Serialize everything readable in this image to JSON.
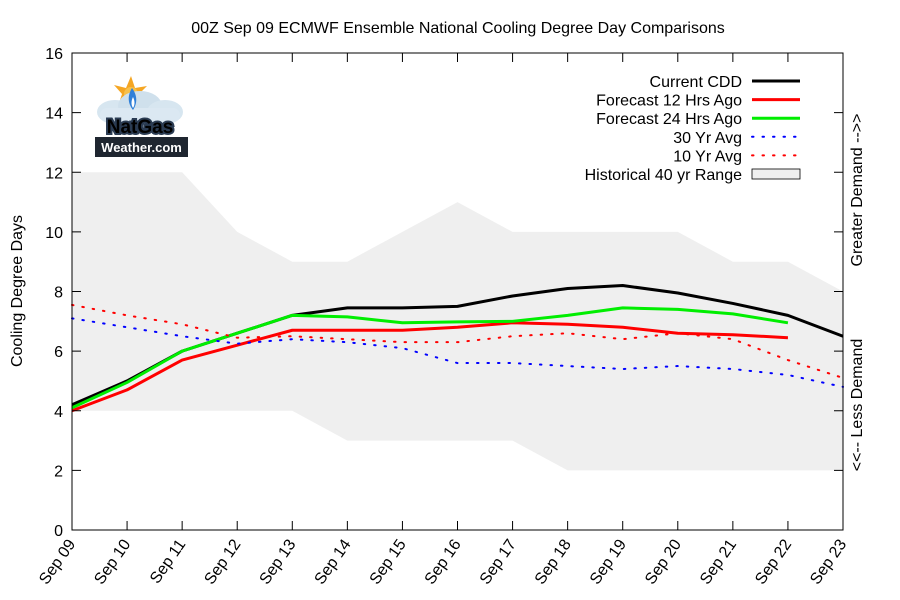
{
  "chart_data": {
    "type": "line",
    "title": "00Z Sep 09 ECMWF Ensemble National Cooling Degree Day Comparisons",
    "ylabel": "Cooling Degree Days",
    "right_label_top": "Greater Demand -->>",
    "right_label_bottom": "<<-- Less Demand",
    "ylim": [
      0,
      16
    ],
    "yticks": [
      0,
      2,
      4,
      6,
      8,
      10,
      12,
      14,
      16
    ],
    "categories": [
      "Sep 09",
      "Sep 10",
      "Sep 11",
      "Sep 12",
      "Sep 13",
      "Sep 14",
      "Sep 15",
      "Sep 16",
      "Sep 17",
      "Sep 18",
      "Sep 19",
      "Sep 20",
      "Sep 21",
      "Sep 22",
      "Sep 23"
    ],
    "legend_position": "top-right",
    "historical_range": {
      "name": "Historical 40 yr Range",
      "color": "#efefef",
      "upper": [
        12,
        12,
        12,
        10,
        9,
        9,
        10,
        11,
        10,
        10,
        10,
        10,
        9,
        9,
        8
      ],
      "lower": [
        4,
        4,
        4,
        4,
        4,
        3,
        3,
        3,
        3,
        2,
        2,
        2,
        2,
        2,
        2
      ]
    },
    "series": [
      {
        "name": "Current CDD",
        "color": "#000000",
        "style": "solid",
        "values": [
          4.2,
          5.0,
          6.0,
          6.6,
          7.2,
          7.45,
          7.45,
          7.5,
          7.85,
          8.1,
          8.2,
          7.95,
          7.6,
          7.2,
          6.5
        ]
      },
      {
        "name": "Forecast 12 Hrs Ago",
        "color": "#ff0000",
        "style": "solid",
        "values": [
          4.0,
          4.7,
          5.7,
          6.2,
          6.7,
          6.7,
          6.7,
          6.8,
          6.95,
          6.9,
          6.8,
          6.6,
          6.55,
          6.45,
          null
        ]
      },
      {
        "name": "Forecast 24 Hrs Ago",
        "color": "#00ee00",
        "style": "solid",
        "values": [
          4.1,
          4.95,
          6.0,
          6.6,
          7.2,
          7.15,
          6.95,
          6.98,
          7.0,
          7.2,
          7.45,
          7.4,
          7.25,
          6.95,
          null
        ]
      },
      {
        "name": "30 Yr Avg",
        "color": "#0000ff",
        "style": "dotted",
        "values": [
          7.1,
          6.8,
          6.5,
          6.25,
          6.4,
          6.3,
          6.1,
          5.6,
          5.6,
          5.5,
          5.4,
          5.5,
          5.4,
          5.2,
          4.8
        ]
      },
      {
        "name": "10 Yr Avg",
        "color": "#ff0000",
        "style": "dotted",
        "values": [
          7.55,
          7.2,
          6.9,
          6.45,
          6.5,
          6.4,
          6.3,
          6.3,
          6.5,
          6.6,
          6.4,
          6.6,
          6.4,
          5.7,
          5.1
        ]
      }
    ]
  },
  "logo": {
    "line1": "NatGas",
    "line2": "Weather.com"
  }
}
